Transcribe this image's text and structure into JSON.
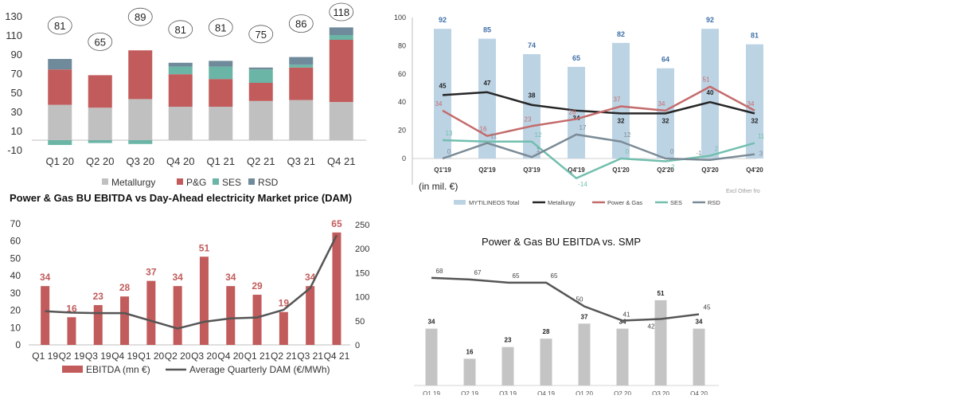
{
  "chart_data": [
    {
      "type": "bar",
      "stacked": true,
      "categories": [
        "Q1 20",
        "Q2 20",
        "Q3 20",
        "Q4 20",
        "Q1 21",
        "Q2 21",
        "Q3 21",
        "Q4 21"
      ],
      "series": [
        {
          "name": "Metallurgy",
          "values": [
            37,
            34,
            43,
            35,
            35,
            41,
            42,
            40
          ]
        },
        {
          "name": "P&G",
          "values": [
            37,
            34,
            51,
            34,
            29,
            19,
            34,
            65
          ]
        },
        {
          "name": "SES",
          "values": [
            -5,
            -3,
            -4,
            8,
            13,
            14,
            3,
            5
          ]
        },
        {
          "name": "RSD",
          "values": [
            11,
            0,
            0,
            4,
            6,
            2,
            8,
            8
          ]
        }
      ],
      "totals": [
        81,
        65,
        89,
        81,
        81,
        75,
        86,
        118
      ],
      "yticks": [
        -10,
        10,
        30,
        50,
        70,
        90,
        110,
        130
      ],
      "ylim": [
        -10,
        135
      ],
      "colors": {
        "Metallurgy": "#c0c0c0",
        "P&G": "#c25b5b",
        "SES": "#6ab5a6",
        "RSD": "#6f8a9a"
      },
      "legend_position": "bottom",
      "grid": false
    },
    {
      "type": "bar",
      "categories": [
        "Q1'19",
        "Q2'19",
        "Q3'19",
        "Q4'19",
        "Q1'20",
        "Q2'20",
        "Q3'20",
        "Q4'20"
      ],
      "series": [
        {
          "name": "MYTILINEOS Total",
          "type": "bar",
          "values": [
            92,
            85,
            74,
            65,
            82,
            64,
            92,
            81
          ],
          "labels": [
            "92",
            "85",
            "74",
            "65",
            "82",
            "64",
            "92",
            "81"
          ]
        },
        {
          "name": "Metallurgy",
          "type": "line",
          "values": [
            45,
            47,
            38,
            34,
            32,
            32,
            40,
            32
          ],
          "labels": [
            "45",
            "47",
            "38",
            "34",
            "32",
            "32",
            "40",
            "32"
          ]
        },
        {
          "name": "Power & Gas",
          "type": "line",
          "values": [
            34,
            16,
            23,
            28,
            37,
            34,
            51,
            34
          ],
          "labels": [
            "34",
            "16",
            "23",
            "28",
            "37",
            "34",
            "51",
            "34"
          ]
        },
        {
          "name": "SES",
          "type": "line",
          "values": [
            13,
            12,
            12,
            -14,
            0,
            -2,
            2,
            11
          ],
          "labels": [
            "13",
            "",
            "12",
            "-14",
            "0",
            "-2",
            "2",
            "11"
          ]
        },
        {
          "name": "RSD",
          "type": "line",
          "values": [
            0,
            11,
            1,
            17,
            12,
            0,
            -1,
            3
          ],
          "labels": [
            "0",
            "11",
            "1",
            "17",
            "12",
            "0",
            "-1",
            "3"
          ]
        }
      ],
      "yticks": [
        0,
        20,
        40,
        60,
        80,
        100
      ],
      "ylim": [
        -20,
        100
      ],
      "annotation": "(in mil. €)",
      "note": "Excl Other fro",
      "colors": {
        "MYTILINEOS Total": "#bcd3e4",
        "Metallurgy": "#262626",
        "Power & Gas": "#c46b6b",
        "SES": "#72bfae",
        "RSD": "#7b8b96"
      },
      "legend_position": "bottom",
      "grid": false
    },
    {
      "type": "bar",
      "title": "Power & Gas BU EBITDA vs Day-Ahead electricity Market price (DAM)",
      "categories": [
        "Q1 19",
        "Q2 19",
        "Q3 19",
        "Q4 19",
        "Q1 20",
        "Q2 20",
        "Q3 20",
        "Q4 20",
        "Q1 21",
        "Q2 21",
        "Q3 21",
        "Q4 21"
      ],
      "series": [
        {
          "name": "EBITDA (mn €)",
          "type": "bar",
          "axis": "left",
          "values": [
            34,
            16,
            23,
            28,
            37,
            34,
            51,
            34,
            29,
            19,
            34,
            65
          ]
        },
        {
          "name": "Average Quarterly DAM (€/MWh)",
          "type": "line",
          "axis": "right",
          "values": [
            70,
            67,
            66,
            66,
            50,
            34,
            48,
            55,
            57,
            73,
            118,
            228
          ]
        }
      ],
      "ylim_left": [
        0,
        70
      ],
      "yticks_left": [
        0,
        10,
        20,
        30,
        40,
        50,
        60,
        70
      ],
      "ylim_right": [
        0,
        260
      ],
      "yticks_right": [
        0,
        50,
        100,
        150,
        200,
        250
      ],
      "colors": {
        "EBITDA (mn €)": "#c25b5b",
        "Average Quarterly DAM (€/MWh)": "#555555"
      },
      "legend_position": "bottom",
      "grid": false
    },
    {
      "type": "bar",
      "title": "Power & Gas BU EBITDA vs. SMP",
      "categories": [
        "Q1 19",
        "Q2 19",
        "Q3 19",
        "Q4 19",
        "Q1 20",
        "Q2 20",
        "Q3 20",
        "Q4 20"
      ],
      "series": [
        {
          "type": "bar",
          "values": [
            34,
            16,
            23,
            28,
            37,
            34,
            51,
            34
          ]
        },
        {
          "type": "line",
          "values": [
            68,
            67,
            65,
            65,
            50,
            41,
            42,
            45
          ]
        }
      ],
      "bar_ylim": [
        0,
        60
      ],
      "line_ylim": [
        0,
        80
      ],
      "colors": {
        "bar": "#c4c4c4",
        "line": "#555555"
      },
      "grid": false
    }
  ]
}
